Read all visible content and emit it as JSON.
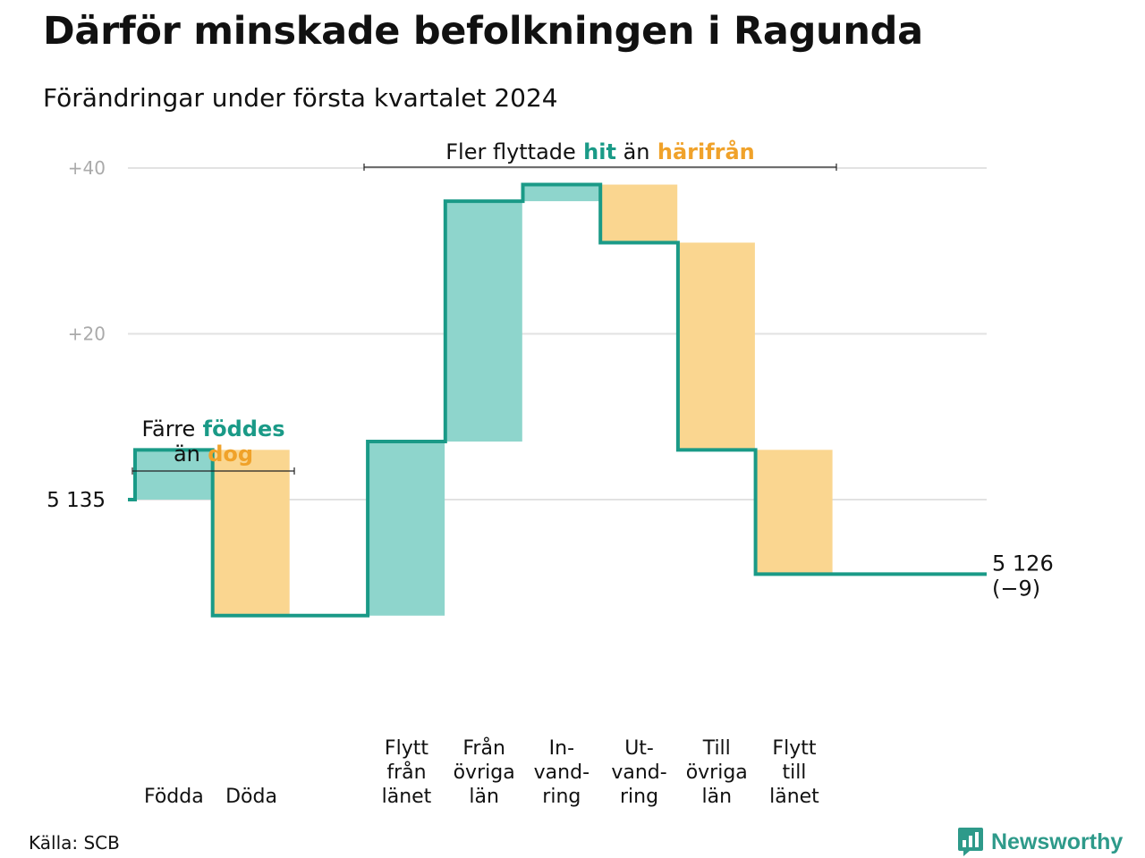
{
  "title": "Därför minskade befolkningen i Ragunda",
  "subtitle": "Förändringar under första kvartalet 2024",
  "source": "Källa: SCB",
  "brand": "Newsworthy",
  "colors": {
    "increase_fill": "#8ed5cc",
    "decrease_fill": "#fad690",
    "line": "#1a9a87",
    "gridline": "#e2e2e2",
    "accent_green": "#1a9a87",
    "accent_orange": "#f0a22a"
  },
  "chart_data": {
    "type": "waterfall",
    "start": {
      "value": 5135,
      "label": "5  135"
    },
    "end": {
      "value": 5126,
      "label": "5 126",
      "change_label": "(−9)"
    },
    "steps": [
      {
        "category": [
          "Födda"
        ],
        "change": 6
      },
      {
        "category": [
          "Döda"
        ],
        "change": -20
      },
      {
        "category": [],
        "change": 0
      },
      {
        "category": [
          "Flytt",
          "från",
          "länet"
        ],
        "change": 21
      },
      {
        "category": [
          "Från",
          "övriga",
          "län"
        ],
        "change": 29
      },
      {
        "category": [
          "In-",
          "vand-",
          "ring"
        ],
        "change": 2
      },
      {
        "category": [
          "Ut-",
          "vand-",
          "ring"
        ],
        "change": -7
      },
      {
        "category": [
          "Till",
          "övriga",
          "län"
        ],
        "change": -25
      },
      {
        "category": [
          "Flytt",
          "till",
          "länet"
        ],
        "change": -15
      }
    ],
    "y_ticks": [
      {
        "value": 40,
        "label": "+40"
      },
      {
        "value": 20,
        "label": "+20"
      },
      {
        "value": 0,
        "label": ""
      }
    ],
    "ylim": [
      -22,
      40
    ],
    "grid": true,
    "annotations": [
      {
        "parts": [
          {
            "text": "Färre",
            "style": "plain"
          },
          {
            "text": "föddes",
            "style": "green"
          },
          {
            "text": "än",
            "style": "plain",
            "newline": true
          },
          {
            "text": "dog",
            "style": "orange"
          }
        ],
        "span": [
          0,
          1
        ]
      },
      {
        "parts": [
          {
            "text": "Fler flyttade",
            "style": "plain"
          },
          {
            "text": "hit",
            "style": "green"
          },
          {
            "text": "än",
            "style": "plain"
          },
          {
            "text": "härifrån",
            "style": "orange"
          }
        ],
        "span": [
          3,
          8
        ]
      }
    ]
  }
}
